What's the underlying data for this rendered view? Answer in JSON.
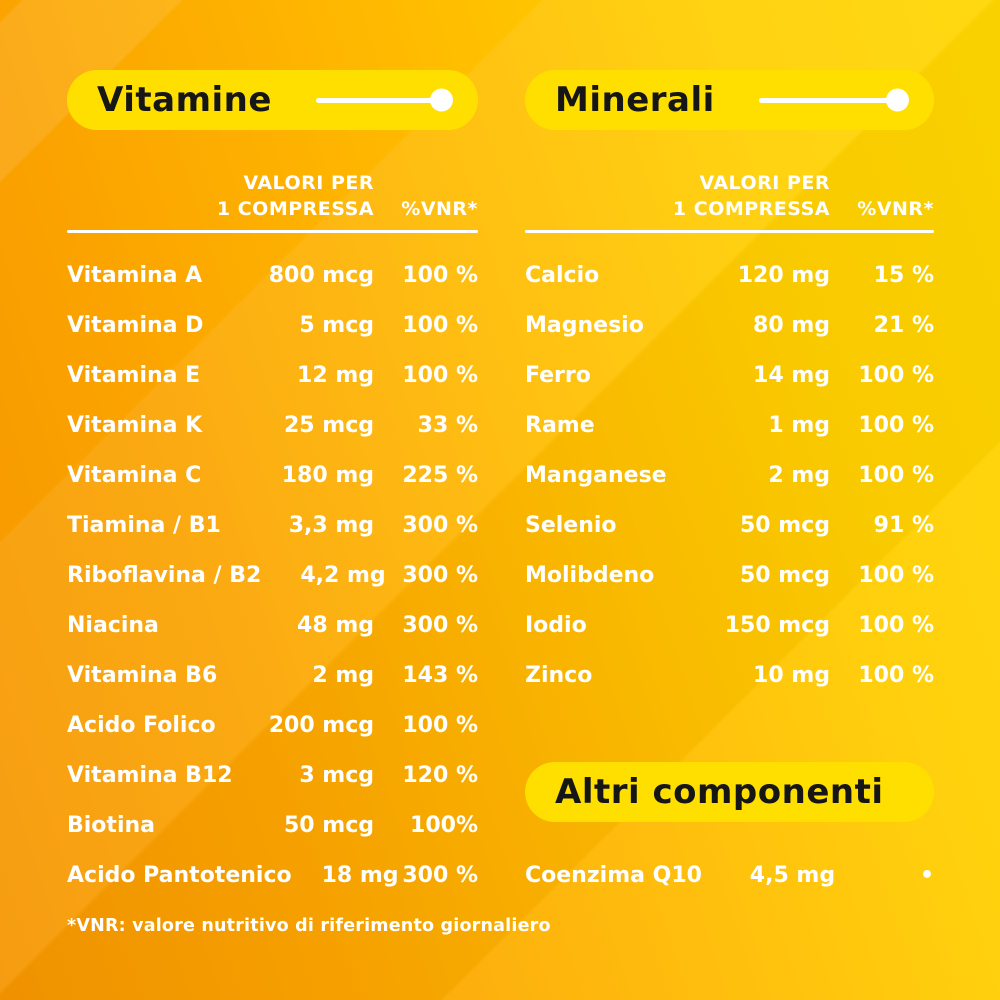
{
  "table_header": {
    "line1": "VALORI PER",
    "line2": "1 COMPRESSA",
    "vnr_label": "%VNR*"
  },
  "sections": {
    "vitamins": {
      "title": "Vitamine",
      "rows": [
        {
          "label": "Vitamina A",
          "amount": "800 mcg",
          "vnr": "100 %"
        },
        {
          "label": "Vitamina D",
          "amount": "5 mcg",
          "vnr": "100 %"
        },
        {
          "label": "Vitamina E",
          "amount": "12 mg",
          "vnr": "100 %"
        },
        {
          "label": "Vitamina K",
          "amount": "25 mcg",
          "vnr": "33 %"
        },
        {
          "label": "Vitamina C",
          "amount": "180 mg",
          "vnr": "225 %"
        },
        {
          "label": "Tiamina / B1",
          "amount": "3,3 mg",
          "vnr": "300 %"
        },
        {
          "label": "Riboflavina / B2",
          "amount": "4,2 mg",
          "vnr": "300 %"
        },
        {
          "label": "Niacina",
          "amount": "48 mg",
          "vnr": "300 %"
        },
        {
          "label": "Vitamina B6",
          "amount": "2 mg",
          "vnr": "143 %"
        },
        {
          "label": "Acido Folico",
          "amount": "200 mcg",
          "vnr": "100 %"
        },
        {
          "label": "Vitamina B12",
          "amount": "3 mcg",
          "vnr": "120 %"
        },
        {
          "label": "Biotina",
          "amount": "50 mcg",
          "vnr": "100%"
        },
        {
          "label": "Acido Pantotenico",
          "amount": "18 mg",
          "vnr": "300 %"
        }
      ]
    },
    "minerals": {
      "title": "Minerali",
      "rows": [
        {
          "label": "Calcio",
          "amount": "120 mg",
          "vnr": "15 %"
        },
        {
          "label": "Magnesio",
          "amount": "80 mg",
          "vnr": "21 %"
        },
        {
          "label": "Ferro",
          "amount": "14 mg",
          "vnr": "100 %"
        },
        {
          "label": "Rame",
          "amount": "1 mg",
          "vnr": "100 %"
        },
        {
          "label": "Manganese",
          "amount": "2 mg",
          "vnr": "100 %"
        },
        {
          "label": "Selenio",
          "amount": "50 mcg",
          "vnr": "91 %"
        },
        {
          "label": "Molibdeno",
          "amount": "50 mcg",
          "vnr": "100 %"
        },
        {
          "label": "Iodio",
          "amount": "150 mcg",
          "vnr": "100 %"
        },
        {
          "label": "Zinco",
          "amount": "10 mg",
          "vnr": "100 %"
        }
      ]
    },
    "other": {
      "title": "Altri componenti",
      "rows": [
        {
          "label": "Coenzima Q10",
          "amount": "4,5 mg",
          "vnr": "•"
        }
      ]
    }
  },
  "footnote": "*VNR: valore nutritivo di riferimento giornaliero",
  "colors": {
    "background_orange": "#F59500",
    "background_yellow": "#FFD600",
    "pill_yellow": "#FFDF00",
    "title_black": "#161616",
    "text_white": "#FFFFFF"
  }
}
